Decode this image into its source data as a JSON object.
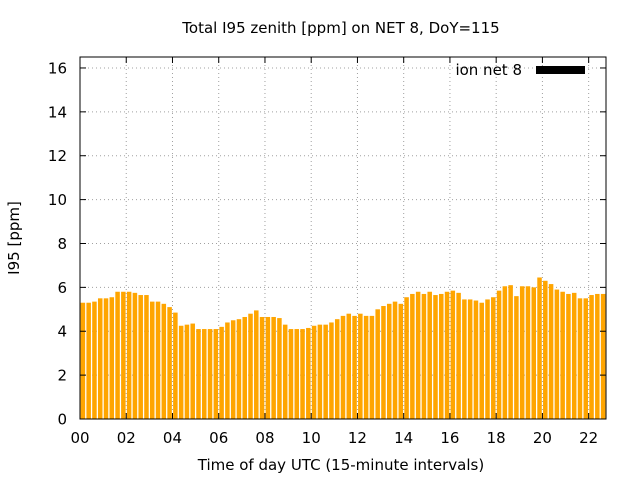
{
  "chart_data": {
    "type": "bar",
    "title": "Total I95 zenith [ppm] on NET 8, DoY=115",
    "xlabel": "Time of day UTC (15-minute intervals)",
    "ylabel": "I95 [ppm]",
    "x_ticks": [
      "00",
      "02",
      "04",
      "06",
      "08",
      "10",
      "12",
      "14",
      "16",
      "18",
      "20",
      "22"
    ],
    "y_ticks": [
      "0",
      "2",
      "4",
      "6",
      "8",
      "10",
      "12",
      "14",
      "16"
    ],
    "xlim": [
      0,
      22.75
    ],
    "ylim": [
      0,
      16.5
    ],
    "grid": true,
    "legend_position": "top-right",
    "bar_color": "#FFA500",
    "legend_swatch_color": "#000000",
    "series": [
      {
        "name": "ion net 8",
        "interval_hours": 0.25,
        "values": [
          5.3,
          5.3,
          5.35,
          5.5,
          5.5,
          5.55,
          5.8,
          5.8,
          5.8,
          5.75,
          5.65,
          5.65,
          5.35,
          5.35,
          5.25,
          5.1,
          4.85,
          4.25,
          4.3,
          4.35,
          4.1,
          4.1,
          4.1,
          4.1,
          4.2,
          4.4,
          4.5,
          4.55,
          4.65,
          4.8,
          4.95,
          4.65,
          4.65,
          4.65,
          4.6,
          4.3,
          4.1,
          4.1,
          4.1,
          4.15,
          4.25,
          4.3,
          4.3,
          4.4,
          4.55,
          4.7,
          4.8,
          4.7,
          4.8,
          4.7,
          4.7,
          5.0,
          5.15,
          5.25,
          5.35,
          5.25,
          5.55,
          5.7,
          5.8,
          5.7,
          5.8,
          5.65,
          5.7,
          5.8,
          5.85,
          5.75,
          5.45,
          5.45,
          5.4,
          5.3,
          5.45,
          5.55,
          5.85,
          6.05,
          6.1,
          5.6,
          6.05,
          6.05,
          6.0,
          6.45,
          6.3,
          6.15,
          5.9,
          5.8,
          5.7,
          5.75,
          5.5,
          5.5,
          5.65,
          5.7,
          5.7
        ]
      }
    ]
  }
}
